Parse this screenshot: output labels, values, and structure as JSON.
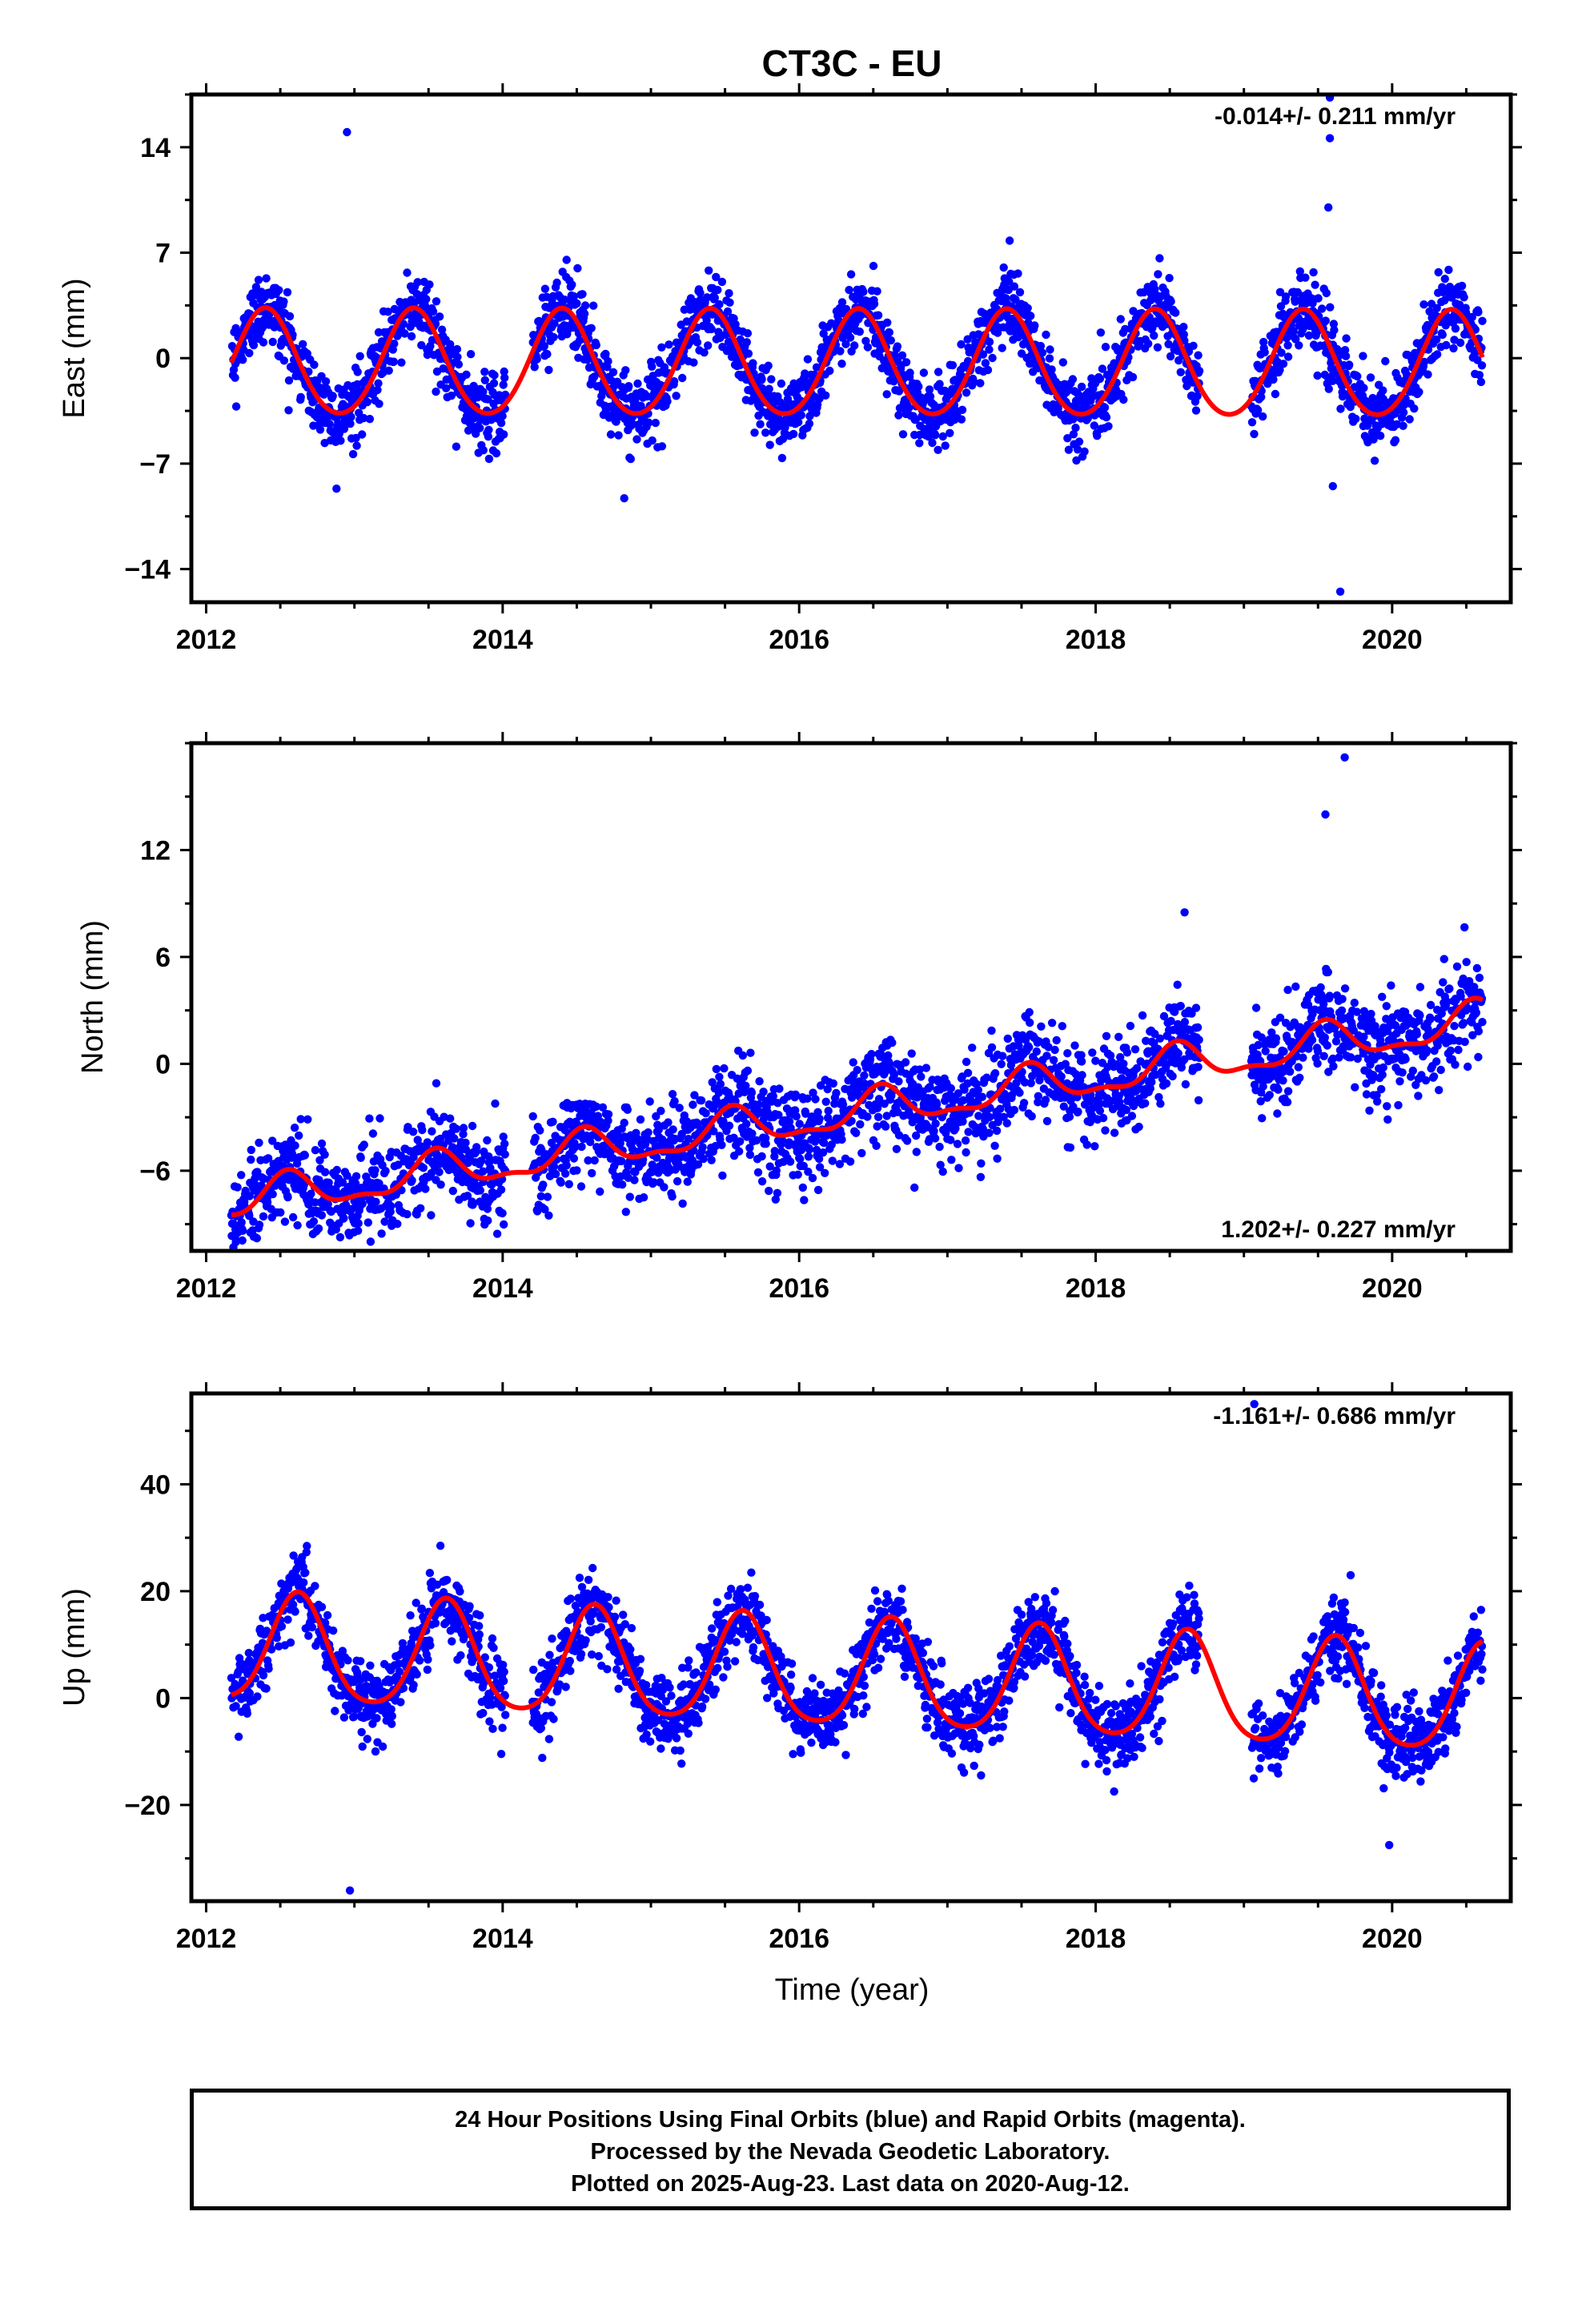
{
  "title": "CT3C - EU",
  "xlabel": "Time (year)",
  "footer": [
    "24 Hour Positions Using Final Orbits (blue) and Rapid Orbits (magenta).",
    "Processed by the Nevada Geodetic Laboratory.",
    "Plotted on 2025-Aug-23. Last data on 2020-Aug-12."
  ],
  "colors": {
    "points": "#0000ff",
    "model": "#ff0000",
    "frame": "#000000"
  },
  "chart_data": [
    {
      "type": "scatter",
      "ylabel": "East (mm)",
      "rate_label": "-0.014+/- 0.211 mm/yr",
      "xlim": [
        2011.9,
        2020.8
      ],
      "ylim": [
        -16.2,
        17.5
      ],
      "x_ticks": [
        2012,
        2014,
        2016,
        2018,
        2020
      ],
      "y_ticks": [
        -14,
        -7,
        0,
        7,
        14
      ],
      "grid": false,
      "data_start": 2012.17,
      "data_end": 2020.61,
      "model": {
        "trend": -0.014,
        "offset": -0.5,
        "annual_amp": 3.5,
        "annual_phase": 2012.4,
        "semi_amp": 0.3,
        "scatter": 1.2
      },
      "gaps": [
        [
          2014.02,
          2014.2
        ],
        [
          2018.7,
          2019.05
        ]
      ],
      "outliers": [
        [
          2012.95,
          15.0
        ],
        [
          2019.58,
          17.3
        ],
        [
          2019.58,
          14.6
        ],
        [
          2019.57,
          10.0
        ],
        [
          2019.6,
          -8.5
        ],
        [
          2019.65,
          -15.5
        ],
        [
          2014.82,
          -9.3
        ],
        [
          2017.42,
          7.8
        ]
      ]
    },
    {
      "type": "scatter",
      "ylabel": "North (mm)",
      "rate_label": "1.202+/- 0.227 mm/yr",
      "xlim": [
        2011.9,
        2020.8
      ],
      "ylim": [
        -10.5,
        18.0
      ],
      "x_ticks": [
        2012,
        2014,
        2016,
        2018,
        2020
      ],
      "y_ticks": [
        -6,
        0,
        6,
        12
      ],
      "grid": false,
      "data_start": 2012.17,
      "data_end": 2020.61,
      "model": {
        "trend": 1.202,
        "offset": -2.7,
        "annual_amp": 1.0,
        "annual_phase": 2012.55,
        "semi_amp": 0.4,
        "scatter": 1.3
      },
      "gaps": [
        [
          2014.02,
          2014.2
        ],
        [
          2018.7,
          2019.05
        ]
      ],
      "outliers": [
        [
          2019.68,
          17.2
        ],
        [
          2019.55,
          14.0
        ],
        [
          2013.9,
          -8.8
        ],
        [
          2012.2,
          -10.0
        ],
        [
          2012.78,
          -8.5
        ],
        [
          2018.6,
          8.5
        ]
      ]
    },
    {
      "type": "scatter",
      "ylabel": "Up (mm)",
      "rate_label": "-1.161+/- 0.686 mm/yr",
      "xlim": [
        2011.9,
        2020.8
      ],
      "ylim": [
        -38.0,
        57.0
      ],
      "x_ticks": [
        2012,
        2014,
        2016,
        2018,
        2020
      ],
      "y_ticks": [
        -20,
        0,
        20,
        40
      ],
      "grid": false,
      "data_start": 2012.17,
      "data_end": 2020.61,
      "model": {
        "trend": -1.161,
        "offset": 4.0,
        "annual_amp": 10.0,
        "annual_phase": 2012.62,
        "semi_amp": 1.5,
        "scatter": 3.5
      },
      "gaps": [
        [
          2014.02,
          2014.2
        ],
        [
          2018.7,
          2019.05
        ]
      ],
      "outliers": [
        [
          2019.07,
          55.0
        ],
        [
          2012.97,
          -36.0
        ],
        [
          2013.58,
          28.5
        ],
        [
          2019.72,
          23.0
        ],
        [
          2019.98,
          -27.5
        ]
      ]
    }
  ]
}
